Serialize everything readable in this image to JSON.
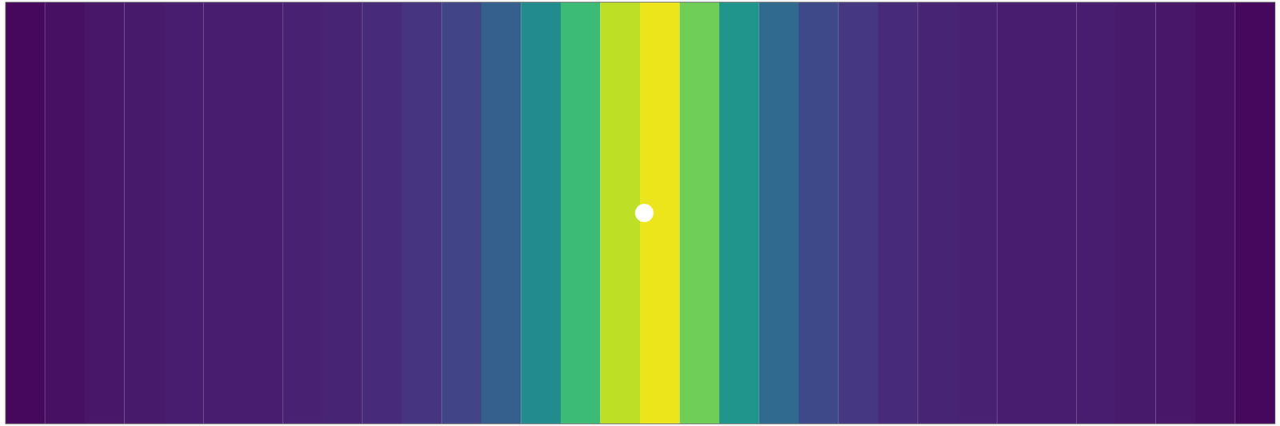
{
  "chart_data": {
    "type": "heatmap",
    "x": [
      1,
      2,
      3,
      4,
      5,
      6,
      7,
      8,
      9,
      10,
      11,
      12,
      13,
      14,
      15,
      16,
      17,
      18,
      19,
      20,
      21,
      22,
      23,
      24,
      25,
      26,
      27,
      28,
      29,
      30,
      31,
      32
    ],
    "values": [
      0.02,
      0.04,
      0.06,
      0.07,
      0.08,
      0.08,
      0.08,
      0.09,
      0.1,
      0.12,
      0.15,
      0.2,
      0.3,
      0.48,
      0.68,
      0.9,
      0.97,
      0.78,
      0.52,
      0.34,
      0.22,
      0.16,
      0.12,
      0.1,
      0.09,
      0.08,
      0.08,
      0.08,
      0.07,
      0.06,
      0.04,
      0.02
    ],
    "xlim": [
      0.5,
      32.5
    ],
    "ylim": [
      0,
      1
    ],
    "color_range": [
      0,
      1
    ],
    "color": "viridis",
    "tick_labels": false,
    "obstacle": {
      "x": 16.6,
      "y": 0.5
    }
  }
}
